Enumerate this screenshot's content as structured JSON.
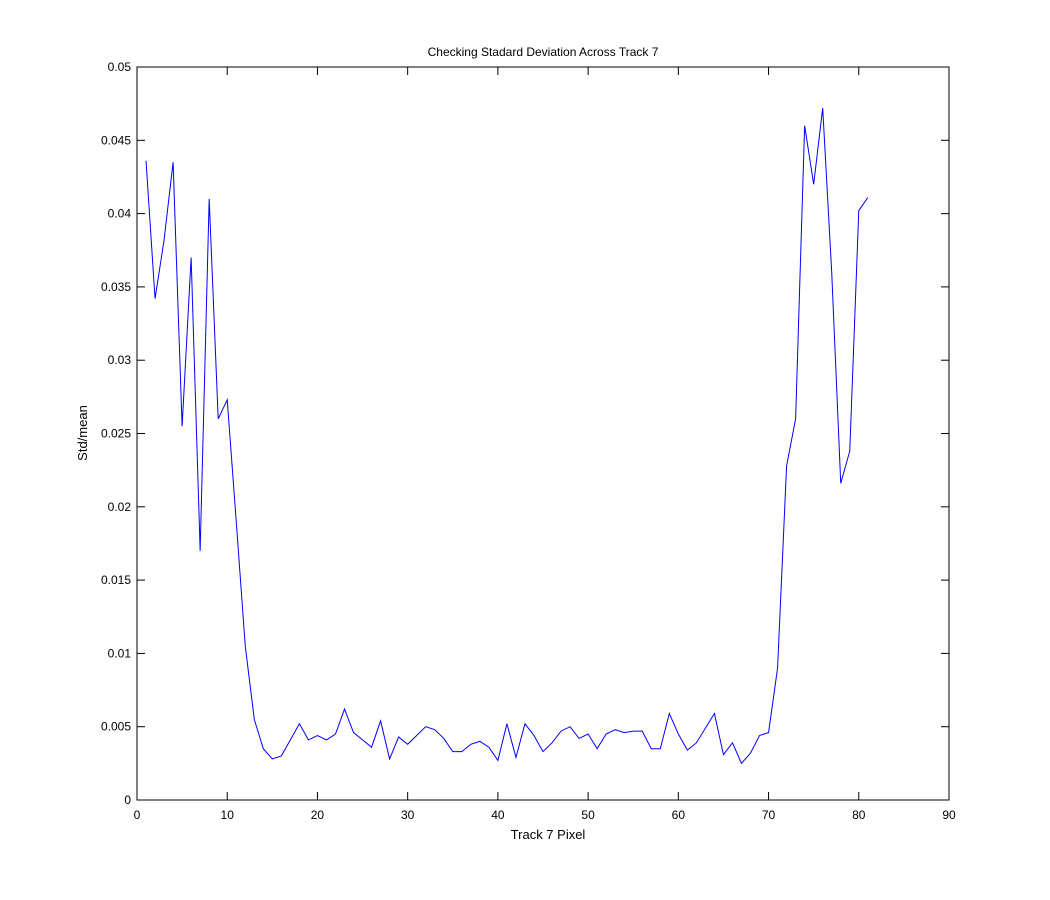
{
  "chart_data": {
    "type": "line",
    "title": "Checking Stadard Deviation Across Track 7",
    "x_label": "Track 7 Pixel",
    "y_label": "Std/mean",
    "x": [
      1,
      2,
      3,
      4,
      5,
      6,
      7,
      8,
      9,
      10,
      11,
      12,
      13,
      14,
      15,
      16,
      17,
      18,
      19,
      20,
      21,
      22,
      23,
      24,
      25,
      26,
      27,
      28,
      29,
      30,
      31,
      32,
      33,
      34,
      35,
      36,
      37,
      38,
      39,
      40,
      41,
      42,
      43,
      44,
      45,
      46,
      47,
      48,
      49,
      50,
      51,
      52,
      53,
      54,
      55,
      56,
      57,
      58,
      59,
      60,
      61,
      62,
      63,
      64,
      65,
      66,
      67,
      68,
      69,
      70,
      71,
      72,
      73,
      74,
      75,
      76,
      77,
      78,
      79,
      80,
      81
    ],
    "series": [
      {
        "color": "#0000ff",
        "values": [
          0.0436,
          0.0342,
          0.0382,
          0.0435,
          0.0255,
          0.037,
          0.017,
          0.041,
          0.026,
          0.0273,
          0.019,
          0.0105,
          0.0055,
          0.0035,
          0.0028,
          0.003,
          0.0041,
          0.0052,
          0.0041,
          0.0044,
          0.0041,
          0.0045,
          0.0062,
          0.0046,
          0.0041,
          0.0036,
          0.0054,
          0.0028,
          0.0043,
          0.0038,
          0.0044,
          0.005,
          0.0048,
          0.0042,
          0.0033,
          0.0033,
          0.0038,
          0.004,
          0.0036,
          0.0027,
          0.0052,
          0.0029,
          0.0052,
          0.0044,
          0.0033,
          0.0039,
          0.0047,
          0.005,
          0.0042,
          0.0045,
          0.0035,
          0.0045,
          0.0048,
          0.0046,
          0.0047,
          0.0047,
          0.0035,
          0.0035,
          0.0059,
          0.0045,
          0.0034,
          0.0039,
          0.0049,
          0.0059,
          0.0031,
          0.0039,
          0.0025,
          0.0032,
          0.0044,
          0.0046,
          0.009,
          0.0228,
          0.026,
          0.046,
          0.042,
          0.0472,
          0.036,
          0.0216,
          0.0238,
          0.0402,
          0.0411
        ]
      }
    ],
    "xlim": [
      0,
      90
    ],
    "xticks": [
      0,
      10,
      20,
      30,
      40,
      50,
      60,
      70,
      80,
      90
    ],
    "ylim": [
      0,
      0.05
    ],
    "yticks": [
      0,
      0.005,
      0.01,
      0.015,
      0.02,
      0.025,
      0.03,
      0.035,
      0.04,
      0.045,
      0.05
    ]
  }
}
